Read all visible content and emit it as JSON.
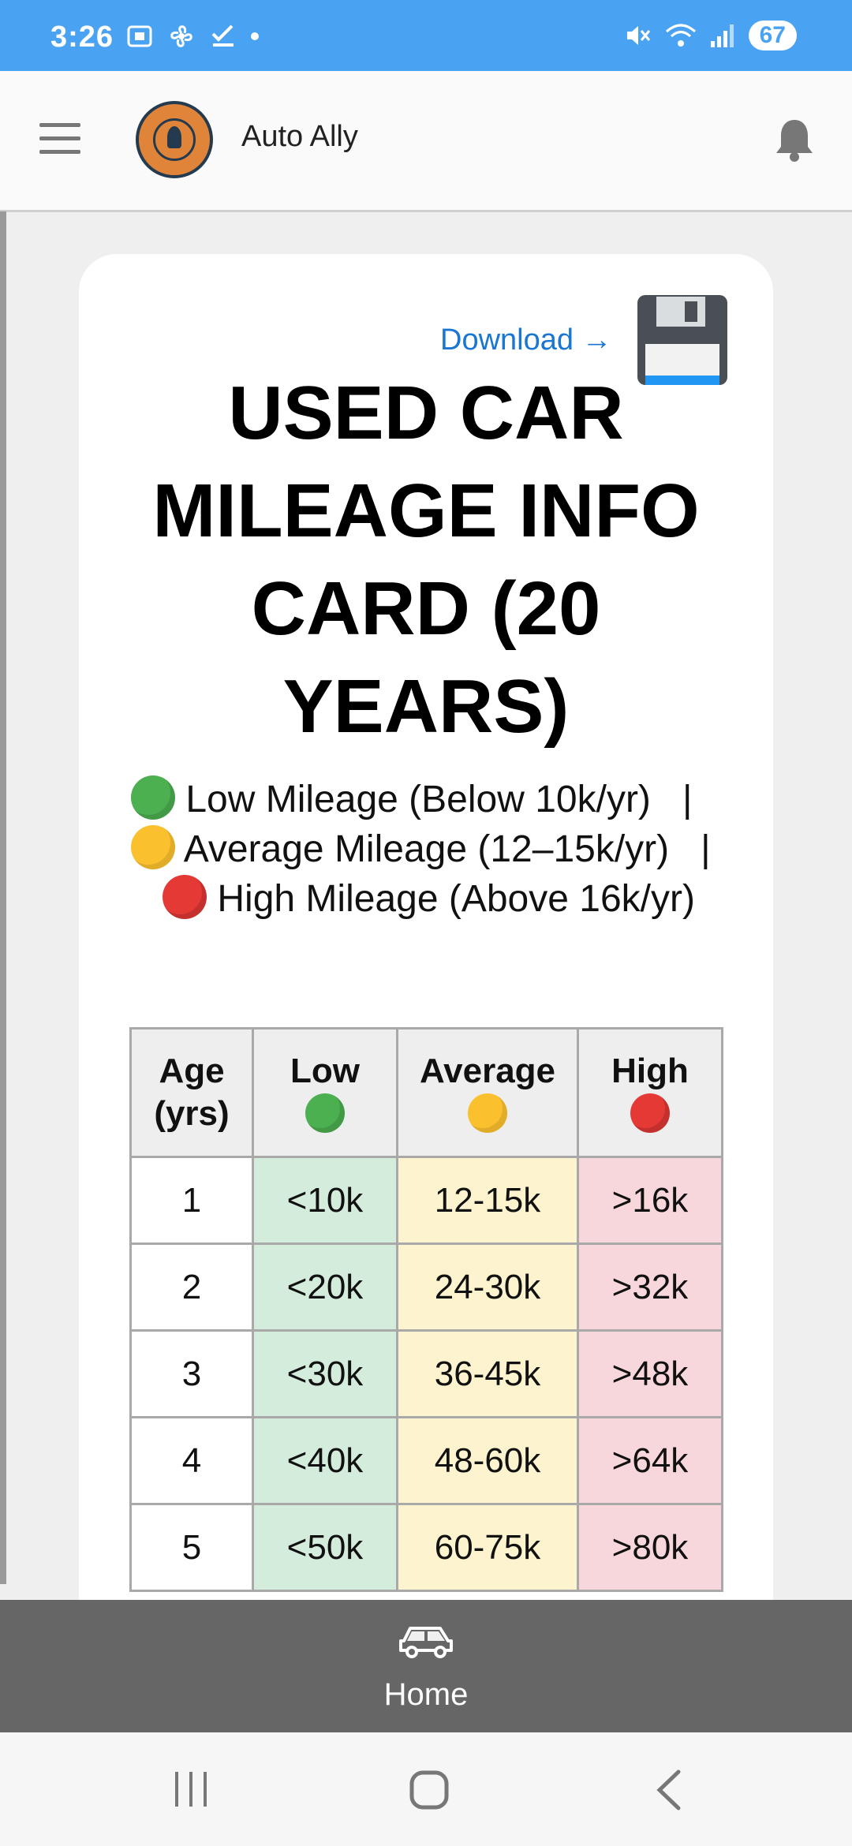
{
  "status_bar": {
    "time": "3:26",
    "battery": "67",
    "bg_color": "#4aa3f2"
  },
  "app_bar": {
    "title": "Auto Ally",
    "logo_text": "AUTO ALLY",
    "menu_icon": "hamburger-menu-icon",
    "notification_icon": "bell-icon"
  },
  "card": {
    "download_label": "Download →",
    "download_icon": "floppy-disk-icon",
    "title": "USED CAR MILEAGE INFO CARD (20 YEARS)",
    "legend": {
      "low": "Low Mileage (Below 10k/yr)",
      "separator": "|",
      "average": "Average Mileage (12–15k/yr)",
      "high": "High Mileage (Above 16k/yr)"
    }
  },
  "table": {
    "headers": {
      "age": "Age (yrs)",
      "low": "Low",
      "average": "Average",
      "high": "High"
    },
    "rows": [
      {
        "age": "1",
        "low": "<10k",
        "average": "12-15k",
        "high": ">16k"
      },
      {
        "age": "2",
        "low": "<20k",
        "average": "24-30k",
        "high": ">32k"
      },
      {
        "age": "3",
        "low": "<30k",
        "average": "36-45k",
        "high": ">48k"
      },
      {
        "age": "4",
        "low": "<40k",
        "average": "48-60k",
        "high": ">64k"
      },
      {
        "age": "5",
        "low": "<50k",
        "average": "60-75k",
        "high": ">80k"
      }
    ],
    "colors": {
      "low": "#d4ecdc",
      "average": "#fdf3cf",
      "high": "#f7d7dc"
    }
  },
  "bottom_nav": {
    "home_label": "Home",
    "home_icon": "car-icon"
  },
  "system_nav": {
    "recent_icon": "recent-apps-icon",
    "home_icon": "home-circle-icon",
    "back_icon": "back-chevron-icon"
  }
}
